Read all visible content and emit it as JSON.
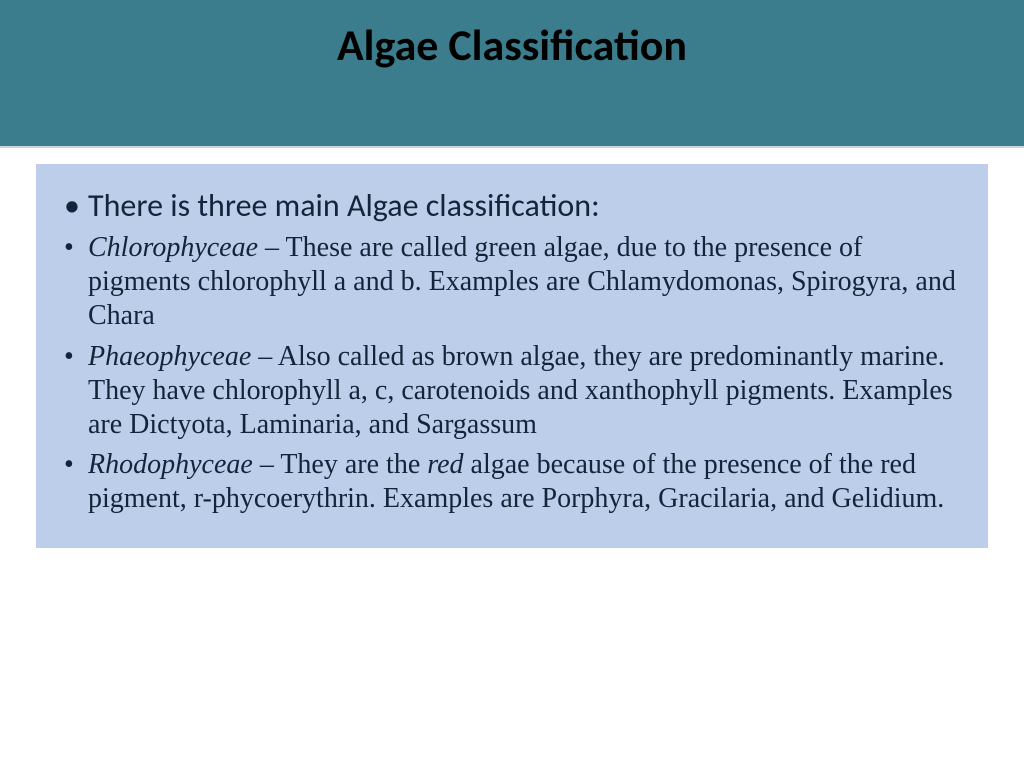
{
  "header": {
    "title": "Algae Classification"
  },
  "content": {
    "intro": "There is three main Algae classification:",
    "items": [
      {
        "term": "Chlorophyceae",
        "sep": " – ",
        "body": "These are called green algae, due to the presence of pigments chlorophyll a and b. Examples are Chlamydomonas, Spirogyra, and Chara"
      },
      {
        "term": "Phaeophyceae",
        "sep": " – ",
        "body": "Also called as brown algae, they are predominantly marine. They have chlorophyll a, c, carotenoids and xanthophyll pigments. Examples are Dictyota, Laminaria, and Sargassum"
      },
      {
        "term": "Rhodophyceae",
        "sep": " – ",
        "body_pre": "They are the ",
        "body_em": "red",
        "body_post": " algae because of the presence of the red pigment, r-phycoerythrin. Examples are Porphyra, Gracilaria, and Gelidium."
      }
    ]
  },
  "style": {
    "header_bg": "#3b7d8c",
    "content_bg": "#bcceea",
    "text_color": "#14243a",
    "title_color": "#000000",
    "title_fontsize": 44,
    "intro_fontsize": 32,
    "item_fontsize": 28
  }
}
